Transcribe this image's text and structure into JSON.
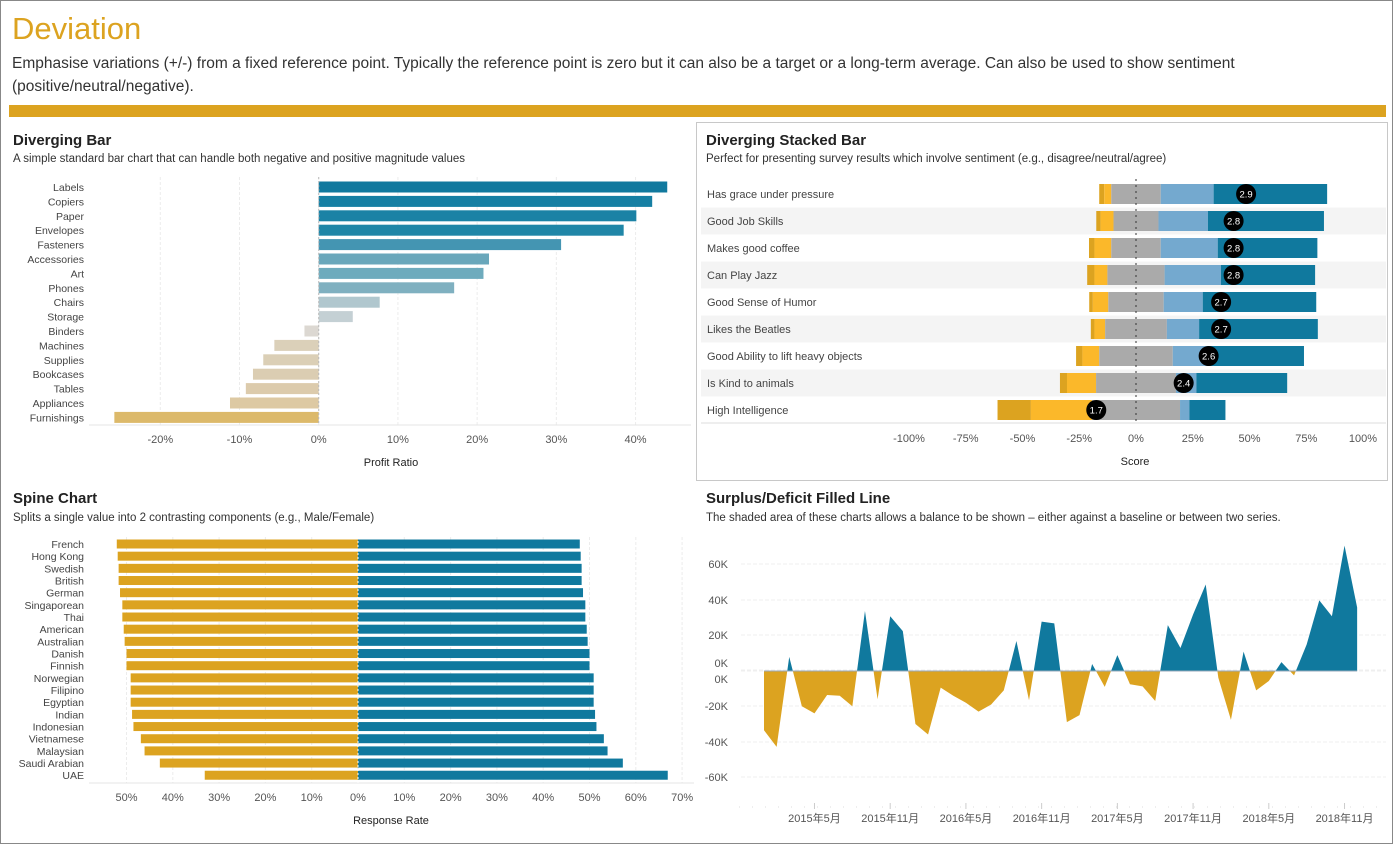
{
  "header": {
    "title": "Deviation",
    "description": "Emphasise variations (+/-) from a fixed reference point. Typically the reference point is zero but it can also be a target or a long-term average. Can also be used to show sentiment (positive/neutral/negative).",
    "accent_color": "#dca320"
  },
  "chart_data": [
    {
      "type": "bar",
      "orientation": "horizontal",
      "title": "Diverging Bar",
      "subtitle": "A simple standard bar chart that can handle both negative and positive magnitude values",
      "xlabel": "Profit Ratio",
      "xlim": [
        -29,
        47
      ],
      "xticks": [
        "-20%",
        "-10%",
        "0%",
        "10%",
        "20%",
        "30%",
        "40%"
      ],
      "xtick_values": [
        -20,
        -10,
        0,
        10,
        20,
        30,
        40
      ],
      "grid": true,
      "categories": [
        "Labels",
        "Copiers",
        "Paper",
        "Envelopes",
        "Fasteners",
        "Accessories",
        "Art",
        "Phones",
        "Chairs",
        "Storage",
        "Binders",
        "Machines",
        "Supplies",
        "Bookcases",
        "Tables",
        "Appliances",
        "Furnishings"
      ],
      "values": [
        44.0,
        42.1,
        40.1,
        38.5,
        30.6,
        21.5,
        20.8,
        17.1,
        7.7,
        4.3,
        -1.8,
        -5.6,
        -7.0,
        -8.3,
        -9.2,
        -11.2,
        -25.8
      ],
      "colors": [
        "#11799e",
        "#167fa3",
        "#1b82a5",
        "#2086a7",
        "#4495b2",
        "#69a7bb",
        "#6eabbd",
        "#7fb0c0",
        "#b0c7ce",
        "#c4d0d4",
        "#dcd8d2",
        "#dbd0b9",
        "#dbcfb6",
        "#dbcdb2",
        "#dccbac",
        "#ddc9a3",
        "#dcb96a"
      ]
    },
    {
      "type": "bar",
      "stacked": true,
      "orientation": "horizontal",
      "title": "Diverging Stacked Bar",
      "subtitle": "Perfect for presenting survey results which involve sentiment (e.g., disagree/neutral/agree)",
      "xlabel": "Score",
      "xlim": [
        -112,
        106
      ],
      "xticks": [
        "-100%",
        "-75%",
        "-50%",
        "-25%",
        "0%",
        "25%",
        "50%",
        "75%",
        "100%"
      ],
      "xtick_values": [
        -100,
        -75,
        -50,
        -25,
        0,
        25,
        50,
        75,
        100
      ],
      "categories": [
        "Has grace under pressure",
        "Good Job Skills",
        "Makes good coffee",
        "Can Play Jazz",
        "Good Sense of Humor",
        "Likes the Beatles",
        "Good Ability to lift heavy objects",
        "Is Kind to animals",
        "High Intelligence"
      ],
      "segment_colors": [
        "#dca320",
        "#fbb82a",
        "#aaaaaa",
        "#74a9cf",
        "#10799e"
      ],
      "series": [
        {
          "values": [
            2.2,
            1.9,
            2.4,
            3.2,
            1.6,
            1.6,
            2.8,
            3.1,
            14.7
          ]
        },
        {
          "values": [
            3.1,
            5.7,
            7.4,
            5.7,
            6.8,
            4.7,
            7.4,
            12.8,
            26.9
          ]
        },
        {
          "values": [
            21.8,
            19.8,
            21.8,
            25.2,
            24.4,
            27.2,
            32.4,
            35.2,
            38.8
          ]
        },
        {
          "values": [
            23.3,
            21.8,
            25.1,
            24.8,
            17.2,
            14.2,
            14.9,
            9.0,
            4.1
          ]
        },
        {
          "values": [
            50.0,
            51.1,
            43.9,
            41.5,
            50.0,
            52.3,
            42.9,
            40.0,
            15.9
          ]
        }
      ],
      "scores": [
        "2.9",
        "2.8",
        "2.8",
        "2.8",
        "2.7",
        "2.7",
        "2.6",
        "2.4",
        "1.7"
      ]
    },
    {
      "type": "bar",
      "orientation": "horizontal",
      "title": "Spine Chart",
      "subtitle": "Splits a single value into 2 contrasting components (e.g., Male/Female)",
      "xlabel": "Response Rate",
      "xlim": [
        -58,
        72.5
      ],
      "xticks": [
        "50%",
        "40%",
        "30%",
        "20%",
        "10%",
        "0%",
        "10%",
        "20%",
        "30%",
        "40%",
        "50%",
        "60%",
        "70%"
      ],
      "xtick_values": [
        -50,
        -40,
        -30,
        -20,
        -10,
        0,
        10,
        20,
        30,
        40,
        50,
        60,
        70
      ],
      "categories": [
        "French",
        "Hong Kong",
        "Swedish",
        "British",
        "German",
        "Singaporean",
        "Thai",
        "American",
        "Australian",
        "Danish",
        "Finnish",
        "Norwegian",
        "Filipino",
        "Egyptian",
        "Indian",
        "Indonesian",
        "Vietnamese",
        "Malaysian",
        "Saudi Arabian",
        "UAE"
      ],
      "series": [
        {
          "side": "left",
          "color": "#dca320",
          "values": [
            52.1,
            51.9,
            51.7,
            51.7,
            51.4,
            50.9,
            50.9,
            50.6,
            50.4,
            50.0,
            50.0,
            49.1,
            49.1,
            49.1,
            48.8,
            48.5,
            46.9,
            46.1,
            42.8,
            33.1
          ]
        },
        {
          "side": "right",
          "color": "#10799e",
          "values": [
            47.9,
            48.1,
            48.3,
            48.3,
            48.6,
            49.1,
            49.1,
            49.4,
            49.6,
            50.0,
            50.0,
            50.9,
            50.9,
            50.9,
            51.2,
            51.5,
            53.1,
            53.9,
            57.2,
            66.9
          ]
        }
      ]
    },
    {
      "type": "area",
      "title": "Surplus/Deficit Filled Line",
      "subtitle": "The shaded area of these charts allows a balance to be shown – either against a baseline or between two series.",
      "ylim": [
        -70,
        72
      ],
      "yticks": [
        "60K",
        "40K",
        "20K",
        "0K",
        "0K",
        "-20K",
        "-40K",
        "-60K"
      ],
      "ytick_values": [
        60,
        40,
        20,
        0,
        0,
        -20,
        -40,
        -60
      ],
      "xticks": [
        "2015年5月",
        "2015年11月",
        "2016年5月",
        "2016年11月",
        "2017年5月",
        "2017年11月",
        "2018年5月",
        "2018年11月"
      ],
      "xtick_months": [
        "2015-05",
        "2015-11",
        "2016-05",
        "2016-11",
        "2017-05",
        "2017-11",
        "2018-05",
        "2018-11"
      ],
      "positive_color": "#10799e",
      "negative_color": "#dca320",
      "x": [
        "2015-01",
        "2015-02",
        "2015-03",
        "2015-04",
        "2015-05",
        "2015-06",
        "2015-07",
        "2015-08",
        "2015-09",
        "2015-10",
        "2015-11",
        "2015-12",
        "2016-01",
        "2016-02",
        "2016-03",
        "2016-04",
        "2016-05",
        "2016-06",
        "2016-07",
        "2016-08",
        "2016-09",
        "2016-10",
        "2016-11",
        "2016-12",
        "2017-01",
        "2017-02",
        "2017-03",
        "2017-04",
        "2017-05",
        "2017-06",
        "2017-07",
        "2017-08",
        "2017-09",
        "2017-10",
        "2017-11",
        "2017-12",
        "2018-01",
        "2018-02",
        "2018-03",
        "2018-04",
        "2018-05",
        "2018-06",
        "2018-07",
        "2018-08",
        "2018-09",
        "2018-10",
        "2018-11",
        "2018-12"
      ],
      "values": [
        -33.6,
        -43,
        8,
        -20,
        -24,
        -13.6,
        -14,
        -20,
        34,
        -16,
        31,
        22.6,
        -30,
        -36,
        -9.4,
        -14,
        -18,
        -23,
        -19,
        -11,
        17,
        -16.6,
        28,
        27,
        -29,
        -25,
        4,
        -9,
        9,
        -7.5,
        -8.7,
        -17,
        26,
        13,
        32,
        49,
        -3.8,
        -27.7,
        11,
        -11,
        -5.7,
        5,
        -2.5,
        15,
        40,
        31,
        71,
        36
      ]
    }
  ]
}
